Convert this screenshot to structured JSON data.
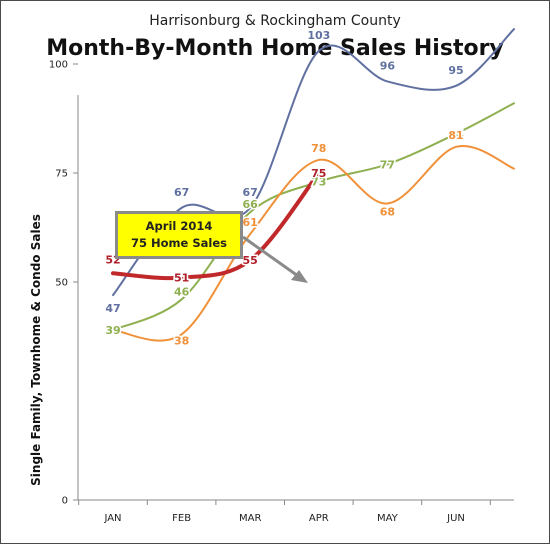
{
  "header": {
    "subtitle": "Harrisonburg & Rockingham County",
    "title": "Month-By-Month Home Sales History"
  },
  "callout": {
    "line1": "April 2014",
    "line2": "75 Home Sales"
  },
  "chart_data": {
    "type": "line",
    "title": "Month-By-Month Home Sales History",
    "subtitle": "Harrisonburg & Rockingham County",
    "ylabel": "Single Family, Townhome & Condo Sales",
    "xlabel": "",
    "categories": [
      "JAN",
      "FEB",
      "MAR",
      "APR",
      "MAY",
      "JUN"
    ],
    "yticks": [
      0,
      50,
      75,
      100
    ],
    "ylim": [
      0,
      100
    ],
    "legend": "none",
    "grid": false,
    "series": [
      {
        "name": "",
        "color": "#6070a0",
        "values": [
          47,
          67,
          67,
          103,
          96,
          95
        ],
        "trailing_to": 108,
        "emphasis": false
      },
      {
        "name": "",
        "color": "#8fb050",
        "values": [
          39,
          46,
          66,
          73,
          77,
          84
        ],
        "trailing_to": 91,
        "emphasis": false
      },
      {
        "name": "",
        "color": "#f0913a",
        "values": [
          null,
          38,
          61,
          78,
          68,
          81
        ],
        "leading_from": 39,
        "trailing_to": 76,
        "emphasis": false
      },
      {
        "name": "",
        "color": "#c0282a",
        "values": [
          52,
          51,
          55,
          75,
          null,
          null
        ],
        "emphasis": true
      }
    ]
  }
}
